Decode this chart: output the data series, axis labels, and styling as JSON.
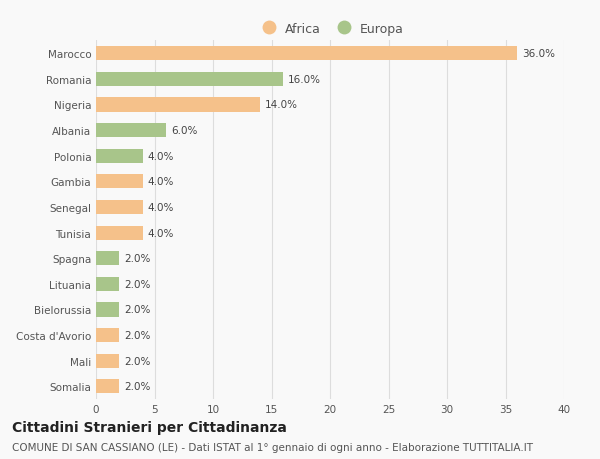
{
  "categories": [
    "Marocco",
    "Romania",
    "Nigeria",
    "Albania",
    "Polonia",
    "Gambia",
    "Senegal",
    "Tunisia",
    "Spagna",
    "Lituania",
    "Bielorussia",
    "Costa d'Avorio",
    "Mali",
    "Somalia"
  ],
  "values": [
    36.0,
    16.0,
    14.0,
    6.0,
    4.0,
    4.0,
    4.0,
    4.0,
    2.0,
    2.0,
    2.0,
    2.0,
    2.0,
    2.0
  ],
  "continents": [
    "Africa",
    "Europa",
    "Africa",
    "Europa",
    "Europa",
    "Africa",
    "Africa",
    "Africa",
    "Europa",
    "Europa",
    "Europa",
    "Africa",
    "Africa",
    "Africa"
  ],
  "africa_color": "#F5C18A",
  "europa_color": "#A8C58A",
  "xlim": [
    0,
    40
  ],
  "xticks": [
    0,
    5,
    10,
    15,
    20,
    25,
    30,
    35,
    40
  ],
  "title": "Cittadini Stranieri per Cittadinanza",
  "subtitle": "COMUNE DI SAN CASSIANO (LE) - Dati ISTAT al 1° gennaio di ogni anno - Elaborazione TUTTITALIA.IT",
  "legend_africa": "Africa",
  "legend_europa": "Europa",
  "bar_height": 0.55,
  "bg_color": "#f9f9f9",
  "grid_color": "#dddddd",
  "title_fontsize": 10,
  "subtitle_fontsize": 7.5,
  "label_fontsize": 7.5,
  "tick_fontsize": 7.5,
  "legend_fontsize": 9
}
